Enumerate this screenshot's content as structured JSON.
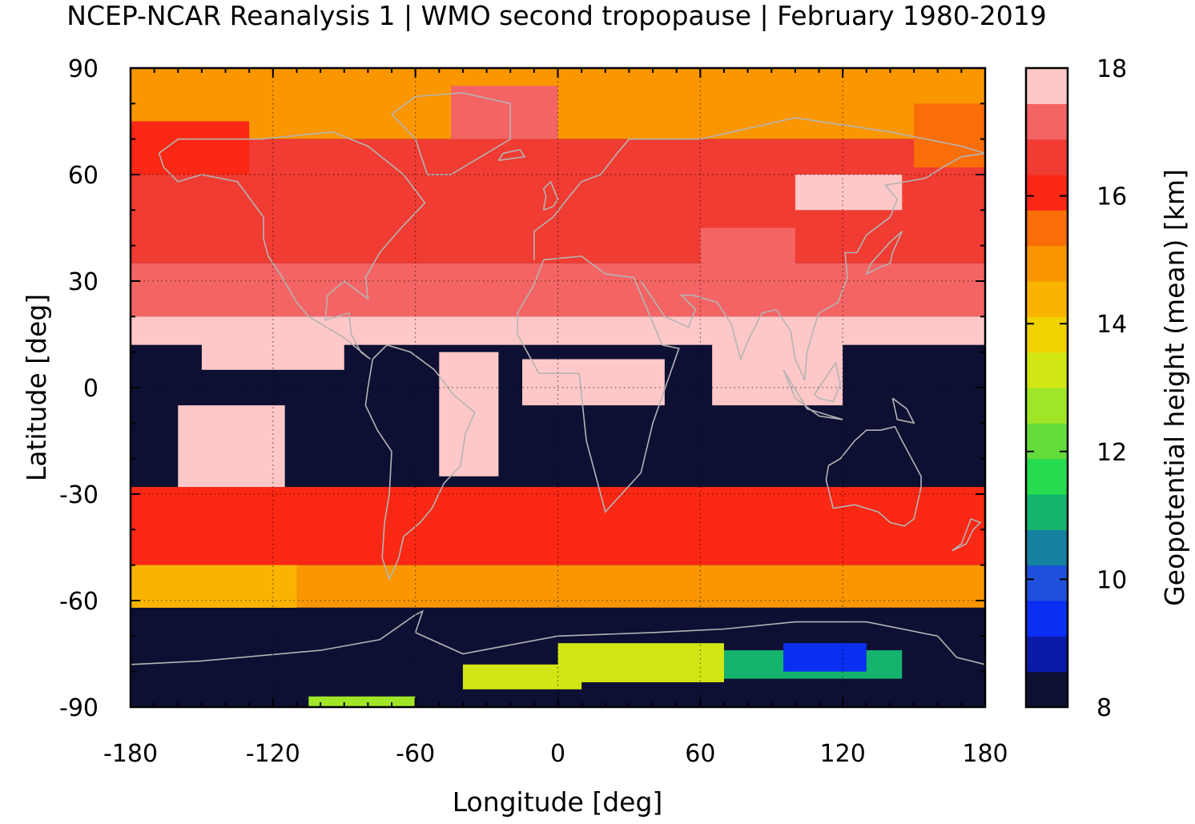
{
  "chart_data": {
    "type": "heatmap",
    "title": "NCEP-NCAR Reanalysis 1 | WMO second tropopause | February 1980-2019",
    "xlabel": "Longitude [deg]",
    "ylabel": "Latitude [deg]",
    "colorbar_label": "Geopotential height (mean) [km]",
    "xlim": [
      -180,
      180
    ],
    "ylim": [
      -90,
      90
    ],
    "xticks": [
      "-180",
      "-120",
      "-60",
      "0",
      "60",
      "120",
      "180"
    ],
    "yticks": [
      "90",
      "60",
      "30",
      "0",
      "-30",
      "-60",
      "-90"
    ],
    "colorbar_ticks": [
      "18",
      "16",
      "14",
      "12",
      "10",
      "8"
    ],
    "crange": [
      8,
      18
    ],
    "grid": true,
    "no_data_color": "#0d1033",
    "coastline_color": "#b4b4b4",
    "colorbar_colors": [
      "#0d1033",
      "#0a1aa8",
      "#0a2ef2",
      "#1e50dc",
      "#1482a0",
      "#14b46e",
      "#28dc50",
      "#64dc3c",
      "#a0e628",
      "#d2e614",
      "#f0d200",
      "#fab400",
      "#fa9600",
      "#fa6e0a",
      "#fa2814",
      "#f03c32",
      "#f56464",
      "#ffc8c8"
    ],
    "lat_bands": [
      {
        "lat_min": 70,
        "lat_max": 90,
        "value": 15.0
      },
      {
        "lat_min": 35,
        "lat_max": 70,
        "value": 16.4
      },
      {
        "lat_min": 20,
        "lat_max": 35,
        "value": 17.0
      },
      {
        "lat_min": 12,
        "lat_max": 20,
        "value": 17.8
      },
      {
        "lat_min": -28,
        "lat_max": 12,
        "value": 8.0
      },
      {
        "lat_min": -50,
        "lat_max": -28,
        "value": 16.2
      },
      {
        "lat_min": -62,
        "lat_max": -50,
        "value": 15.0
      },
      {
        "lat_min": -90,
        "lat_max": -62,
        "value": 8.0
      }
    ],
    "regions": [
      {
        "lon_min": -160,
        "lon_max": -115,
        "lat_min": -28,
        "lat_max": -5,
        "value": 17.8
      },
      {
        "lon_min": -150,
        "lon_max": -90,
        "lat_min": 5,
        "lat_max": 15,
        "value": 17.8
      },
      {
        "lon_min": -50,
        "lon_max": -25,
        "lat_min": -25,
        "lat_max": 10,
        "value": 17.8
      },
      {
        "lon_min": -15,
        "lon_max": 45,
        "lat_min": -5,
        "lat_max": 8,
        "value": 17.8
      },
      {
        "lon_min": 65,
        "lon_max": 120,
        "lat_min": -5,
        "lat_max": 15,
        "value": 17.8
      },
      {
        "lon_min": -45,
        "lon_max": 0,
        "lat_min": 70,
        "lat_max": 85,
        "value": 17.4
      },
      {
        "lon_min": 100,
        "lon_max": 145,
        "lat_min": 50,
        "lat_max": 60,
        "value": 17.8
      },
      {
        "lon_min": 60,
        "lon_max": 100,
        "lat_min": 30,
        "lat_max": 45,
        "value": 17.4
      },
      {
        "lon_min": -180,
        "lon_max": -130,
        "lat_min": 60,
        "lat_max": 75,
        "value": 16.2
      },
      {
        "lon_min": 150,
        "lon_max": 180,
        "lat_min": 62,
        "lat_max": 80,
        "value": 15.3
      },
      {
        "lon_min": -180,
        "lon_max": -110,
        "lat_min": -62,
        "lat_max": -50,
        "value": 14.6
      },
      {
        "lon_min": -40,
        "lon_max": 10,
        "lat_min": -85,
        "lat_max": -78,
        "value": 13.2
      },
      {
        "lon_min": 0,
        "lon_max": 70,
        "lat_min": -83,
        "lat_max": -72,
        "value": 13.4
      },
      {
        "lon_min": 70,
        "lon_max": 145,
        "lat_min": -82,
        "lat_max": -74,
        "value": 11.2
      },
      {
        "lon_min": 95,
        "lon_max": 130,
        "lat_min": -80,
        "lat_max": -72,
        "value": 9.2
      },
      {
        "lon_min": -105,
        "lon_max": -60,
        "lat_min": -90,
        "lat_max": -87,
        "value": 12.8
      }
    ]
  }
}
